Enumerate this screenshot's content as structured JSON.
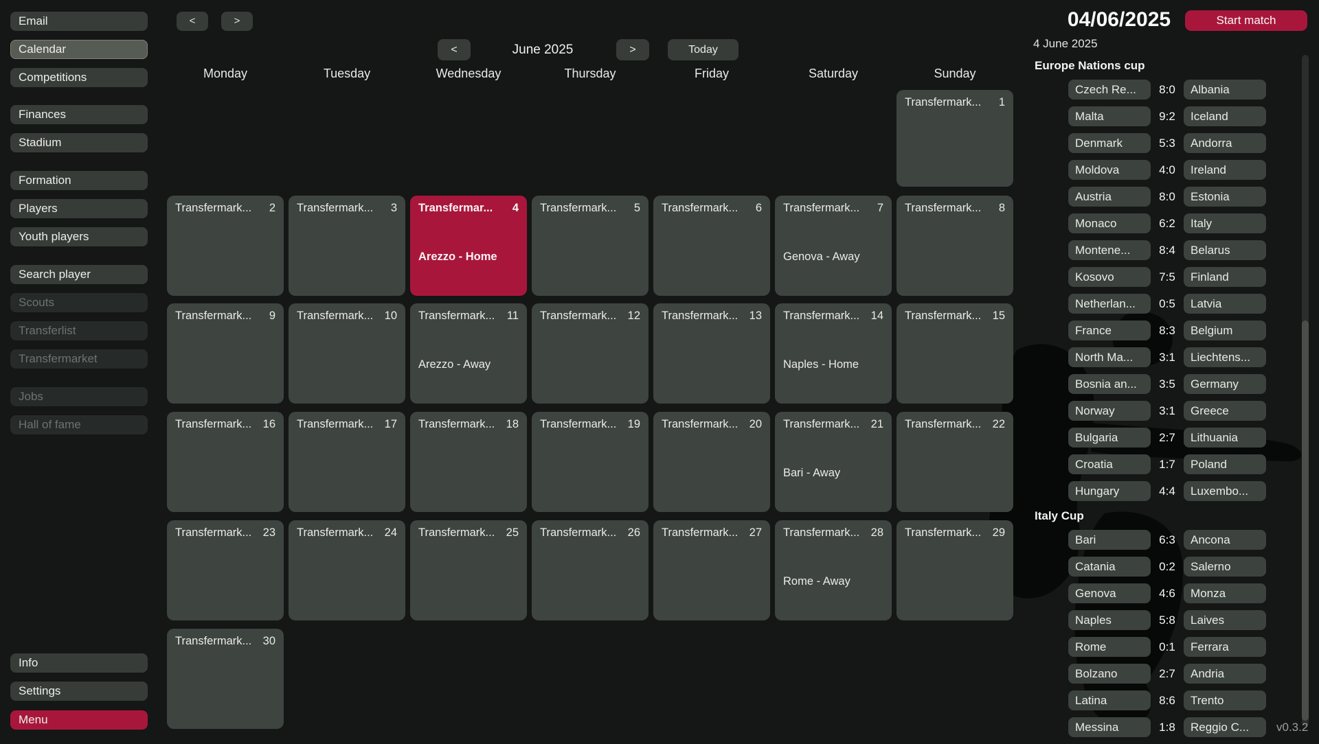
{
  "app": {
    "version": "v0.3.2"
  },
  "top_nav": {
    "back": "<",
    "forward": ">"
  },
  "sidebar": {
    "items": [
      {
        "label": "Email",
        "state": "normal"
      },
      {
        "label": "Calendar",
        "state": "selected"
      },
      {
        "label": "Competitions",
        "state": "normal"
      },
      {
        "label": "Finances",
        "state": "normal"
      },
      {
        "label": "Stadium",
        "state": "normal"
      },
      {
        "label": "Formation",
        "state": "normal"
      },
      {
        "label": "Players",
        "state": "normal"
      },
      {
        "label": "Youth players",
        "state": "normal"
      },
      {
        "label": "Search player",
        "state": "normal"
      },
      {
        "label": "Scouts",
        "state": "disabled"
      },
      {
        "label": "Transferlist",
        "state": "disabled"
      },
      {
        "label": "Transfermarket",
        "state": "disabled"
      },
      {
        "label": "Jobs",
        "state": "disabled"
      },
      {
        "label": "Hall of fame",
        "state": "disabled"
      },
      {
        "label": "Info",
        "state": "normal"
      },
      {
        "label": "Settings",
        "state": "normal"
      },
      {
        "label": "Menu",
        "state": "menu"
      }
    ]
  },
  "calendar": {
    "month_title": "June 2025",
    "prev": "<",
    "next": ">",
    "today_label": "Today",
    "weekdays": [
      "Monday",
      "Tuesday",
      "Wednesday",
      "Thursday",
      "Friday",
      "Saturday",
      "Sunday"
    ],
    "cells": [
      {
        "day": 1,
        "row": 0,
        "col": 6,
        "title": "Transfermark..."
      },
      {
        "day": 2,
        "row": 1,
        "col": 0,
        "title": "Transfermark..."
      },
      {
        "day": 3,
        "row": 1,
        "col": 1,
        "title": "Transfermark..."
      },
      {
        "day": 4,
        "row": 1,
        "col": 2,
        "title": "Transfermar...",
        "match": "Arezzo - Home",
        "selected": true
      },
      {
        "day": 5,
        "row": 1,
        "col": 3,
        "title": "Transfermark..."
      },
      {
        "day": 6,
        "row": 1,
        "col": 4,
        "title": "Transfermark..."
      },
      {
        "day": 7,
        "row": 1,
        "col": 5,
        "title": "Transfermark...",
        "match": "Genova - Away"
      },
      {
        "day": 8,
        "row": 1,
        "col": 6,
        "title": "Transfermark..."
      },
      {
        "day": 9,
        "row": 2,
        "col": 0,
        "title": "Transfermark..."
      },
      {
        "day": 10,
        "row": 2,
        "col": 1,
        "title": "Transfermark..."
      },
      {
        "day": 11,
        "row": 2,
        "col": 2,
        "title": "Transfermark...",
        "match": "Arezzo - Away"
      },
      {
        "day": 12,
        "row": 2,
        "col": 3,
        "title": "Transfermark..."
      },
      {
        "day": 13,
        "row": 2,
        "col": 4,
        "title": "Transfermark..."
      },
      {
        "day": 14,
        "row": 2,
        "col": 5,
        "title": "Transfermark...",
        "match": "Naples - Home"
      },
      {
        "day": 15,
        "row": 2,
        "col": 6,
        "title": "Transfermark..."
      },
      {
        "day": 16,
        "row": 3,
        "col": 0,
        "title": "Transfermark..."
      },
      {
        "day": 17,
        "row": 3,
        "col": 1,
        "title": "Transfermark..."
      },
      {
        "day": 18,
        "row": 3,
        "col": 2,
        "title": "Transfermark..."
      },
      {
        "day": 19,
        "row": 3,
        "col": 3,
        "title": "Transfermark..."
      },
      {
        "day": 20,
        "row": 3,
        "col": 4,
        "title": "Transfermark..."
      },
      {
        "day": 21,
        "row": 3,
        "col": 5,
        "title": "Transfermark...",
        "match": "Bari - Away"
      },
      {
        "day": 22,
        "row": 3,
        "col": 6,
        "title": "Transfermark..."
      },
      {
        "day": 23,
        "row": 4,
        "col": 0,
        "title": "Transfermark..."
      },
      {
        "day": 24,
        "row": 4,
        "col": 1,
        "title": "Transfermark..."
      },
      {
        "day": 25,
        "row": 4,
        "col": 2,
        "title": "Transfermark..."
      },
      {
        "day": 26,
        "row": 4,
        "col": 3,
        "title": "Transfermark..."
      },
      {
        "day": 27,
        "row": 4,
        "col": 4,
        "title": "Transfermark..."
      },
      {
        "day": 28,
        "row": 4,
        "col": 5,
        "title": "Transfermark...",
        "match": "Rome - Away"
      },
      {
        "day": 29,
        "row": 4,
        "col": 6,
        "title": "Transfermark..."
      },
      {
        "day": 30,
        "row": 5,
        "col": 0,
        "title": "Transfermark..."
      }
    ]
  },
  "match_panel": {
    "date_display": "04/06/2025",
    "start_label": "Start match",
    "date_label": "4 June 2025",
    "sections": [
      {
        "title": "Europe Nations cup",
        "matches": [
          {
            "home": "Czech Re...",
            "score": "8:0",
            "away": "Albania"
          },
          {
            "home": "Malta",
            "score": "9:2",
            "away": "Iceland"
          },
          {
            "home": "Denmark",
            "score": "5:3",
            "away": "Andorra"
          },
          {
            "home": "Moldova",
            "score": "4:0",
            "away": "Ireland"
          },
          {
            "home": "Austria",
            "score": "8:0",
            "away": "Estonia"
          },
          {
            "home": "Monaco",
            "score": "6:2",
            "away": "Italy"
          },
          {
            "home": "Montene...",
            "score": "8:4",
            "away": "Belarus"
          },
          {
            "home": "Kosovo",
            "score": "7:5",
            "away": "Finland"
          },
          {
            "home": "Netherlan...",
            "score": "0:5",
            "away": "Latvia"
          },
          {
            "home": "France",
            "score": "8:3",
            "away": "Belgium"
          },
          {
            "home": "North Ma...",
            "score": "3:1",
            "away": "Liechtens..."
          },
          {
            "home": "Bosnia an...",
            "score": "3:5",
            "away": "Germany"
          },
          {
            "home": "Norway",
            "score": "3:1",
            "away": "Greece"
          },
          {
            "home": "Bulgaria",
            "score": "2:7",
            "away": "Lithuania"
          },
          {
            "home": "Croatia",
            "score": "1:7",
            "away": "Poland"
          },
          {
            "home": "Hungary",
            "score": "4:4",
            "away": "Luxembo..."
          }
        ]
      },
      {
        "title": "Italy Cup",
        "matches": [
          {
            "home": "Bari",
            "score": "6:3",
            "away": "Ancona"
          },
          {
            "home": "Catania",
            "score": "0:2",
            "away": "Salerno"
          },
          {
            "home": "Genova",
            "score": "4:6",
            "away": "Monza"
          },
          {
            "home": "Naples",
            "score": "5:8",
            "away": "Laives"
          },
          {
            "home": "Rome",
            "score": "0:1",
            "away": "Ferrara"
          },
          {
            "home": "Bolzano",
            "score": "2:7",
            "away": "Andria"
          },
          {
            "home": "Latina",
            "score": "8:6",
            "away": "Trento"
          },
          {
            "home": "Messina",
            "score": "1:8",
            "away": "Reggio C..."
          }
        ]
      }
    ]
  },
  "colors": {
    "accent": "#a8173b",
    "button": "#373c39",
    "cell": "#3e4440"
  }
}
